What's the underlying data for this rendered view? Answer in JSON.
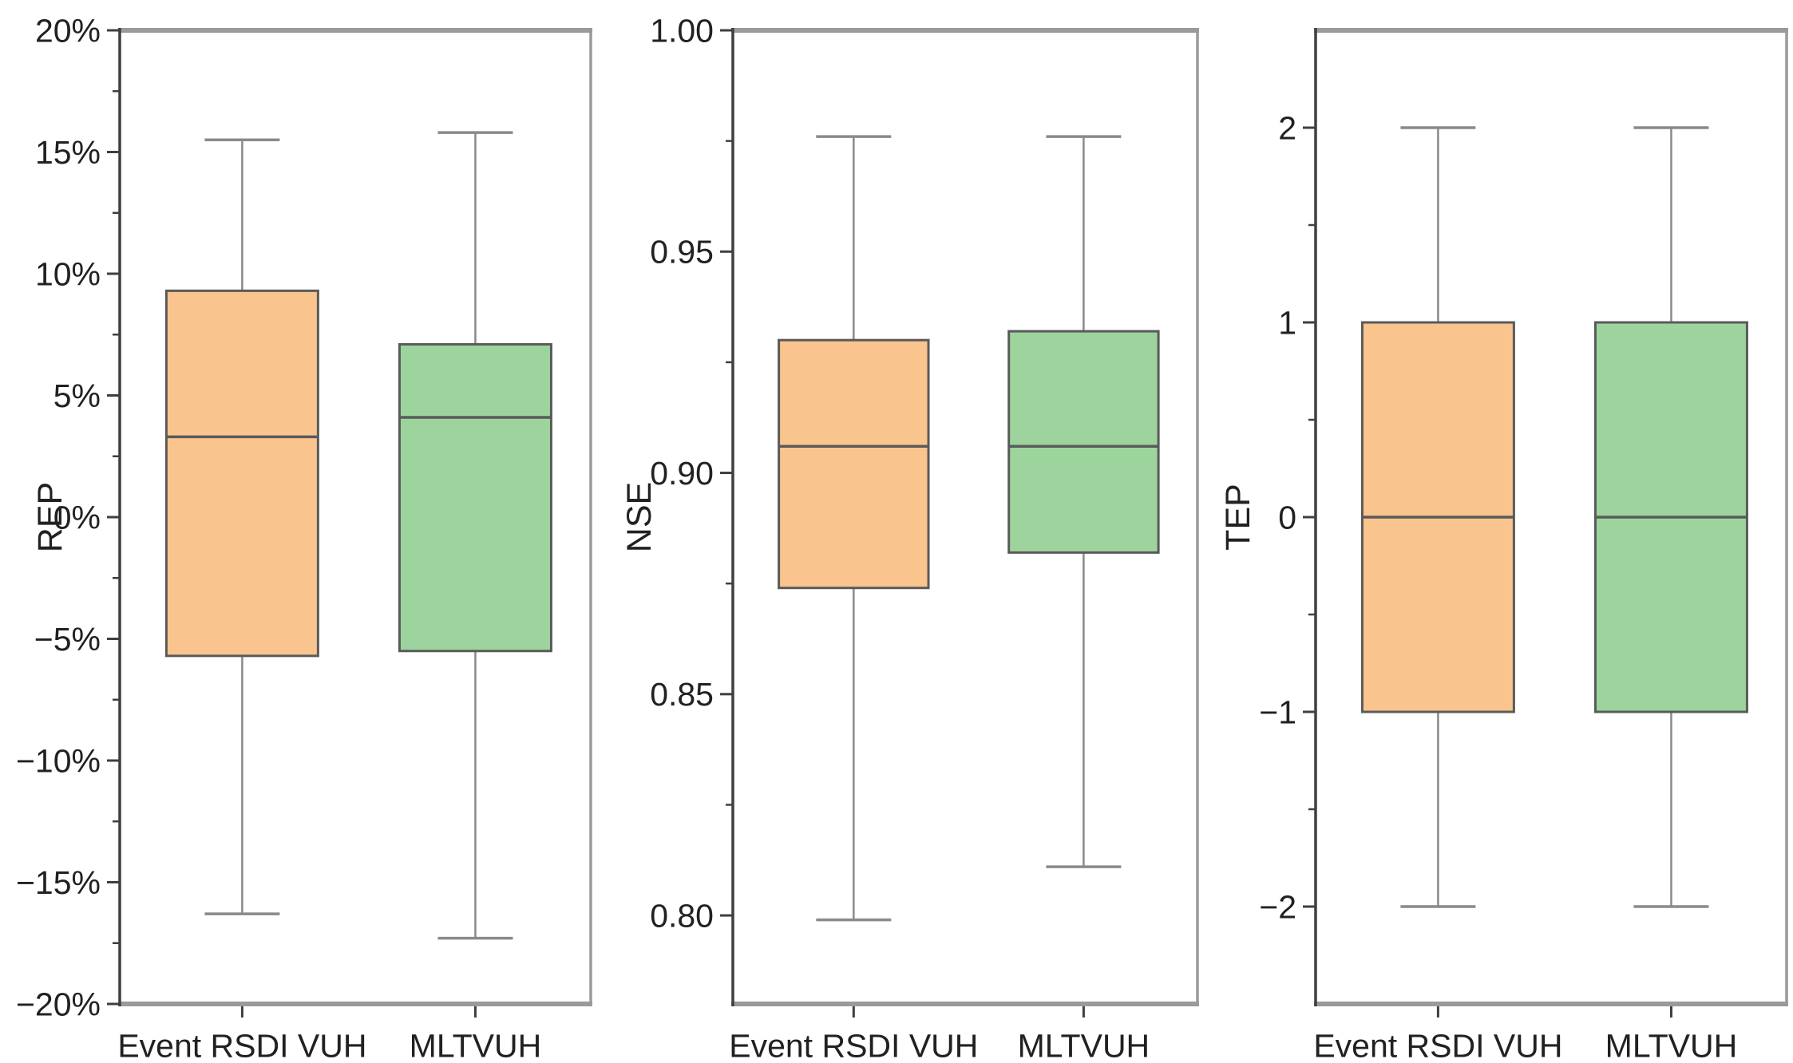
{
  "figure": {
    "background": "#ffffff",
    "description": "Three side-by-side box plots comparing Event RSDI VUH and MLTVUH for REP, NSE and TEP metrics"
  },
  "palette": {
    "orange_fill": "#FAC48E",
    "green_fill": "#9DD49D",
    "box_edge": "#5A5A5A",
    "median_line": "#5A5A5A",
    "whisker": "#8A8A8A",
    "axis_dark": "#3F3F3F",
    "frame_gray": "#9A9A9A",
    "text": "#212121"
  },
  "categories": [
    "Event RSDI VUH",
    "MLTVUH"
  ],
  "chart_data": [
    {
      "type": "box",
      "ylabel": "REP",
      "ylim": [
        -20,
        20
      ],
      "grid": false,
      "legend": "none",
      "yticks": [
        {
          "v": 20,
          "label": "20%"
        },
        {
          "v": 15,
          "label": "15%"
        },
        {
          "v": 10,
          "label": "10%"
        },
        {
          "v": 5,
          "label": "5%"
        },
        {
          "v": 0,
          "label": "0%"
        },
        {
          "v": -5,
          "label": "−5%"
        },
        {
          "v": -10,
          "label": "−10%"
        },
        {
          "v": -15,
          "label": "−15%"
        },
        {
          "v": -20,
          "label": "−20%"
        }
      ],
      "yticks_minor": [
        17.5,
        12.5,
        7.5,
        2.5,
        -2.5,
        -7.5,
        -12.5,
        -17.5
      ],
      "categories": [
        "Event RSDI VUH",
        "MLTVUH"
      ],
      "series": [
        {
          "name": "Event RSDI VUH",
          "color_key": "orange_fill",
          "whisker_low": -16.3,
          "q1": -5.7,
          "median": 3.3,
          "q3": 9.3,
          "whisker_high": 15.5
        },
        {
          "name": "MLTVUH",
          "color_key": "green_fill",
          "whisker_low": -17.3,
          "q1": -5.5,
          "median": 4.1,
          "q3": 7.1,
          "whisker_high": 15.8
        }
      ]
    },
    {
      "type": "box",
      "ylabel": "NSE",
      "ylim": [
        0.78,
        1.0
      ],
      "grid": false,
      "legend": "none",
      "yticks": [
        {
          "v": 1.0,
          "label": "1.00"
        },
        {
          "v": 0.95,
          "label": "0.95"
        },
        {
          "v": 0.9,
          "label": "0.90"
        },
        {
          "v": 0.85,
          "label": "0.85"
        },
        {
          "v": 0.8,
          "label": "0.80"
        }
      ],
      "yticks_minor": [
        0.975,
        0.925,
        0.875,
        0.825
      ],
      "categories": [
        "Event RSDI VUH",
        "MLTVUH"
      ],
      "series": [
        {
          "name": "Event RSDI VUH",
          "color_key": "orange_fill",
          "whisker_low": 0.799,
          "q1": 0.874,
          "median": 0.906,
          "q3": 0.93,
          "whisker_high": 0.976
        },
        {
          "name": "MLTVUH",
          "color_key": "green_fill",
          "whisker_low": 0.811,
          "q1": 0.882,
          "median": 0.906,
          "q3": 0.932,
          "whisker_high": 0.976
        }
      ]
    },
    {
      "type": "box",
      "ylabel": "TEP",
      "ylim": [
        -2.5,
        2.5
      ],
      "grid": false,
      "legend": "none",
      "yticks": [
        {
          "v": 2,
          "label": "2"
        },
        {
          "v": 1,
          "label": "1"
        },
        {
          "v": 0,
          "label": "0"
        },
        {
          "v": -1,
          "label": "−1"
        },
        {
          "v": -2,
          "label": "−2"
        }
      ],
      "yticks_minor": [
        1.5,
        0.5,
        -0.5,
        -1.5
      ],
      "categories": [
        "Event RSDI VUH",
        "MLTVUH"
      ],
      "series": [
        {
          "name": "Event RSDI VUH",
          "color_key": "orange_fill",
          "whisker_low": -2.0,
          "q1": -1.0,
          "median": 0.0,
          "q3": 1.0,
          "whisker_high": 2.0
        },
        {
          "name": "MLTVUH",
          "color_key": "green_fill",
          "whisker_low": -2.0,
          "q1": -1.0,
          "median": 0.0,
          "q3": 1.0,
          "whisker_high": 2.0
        }
      ]
    }
  ]
}
